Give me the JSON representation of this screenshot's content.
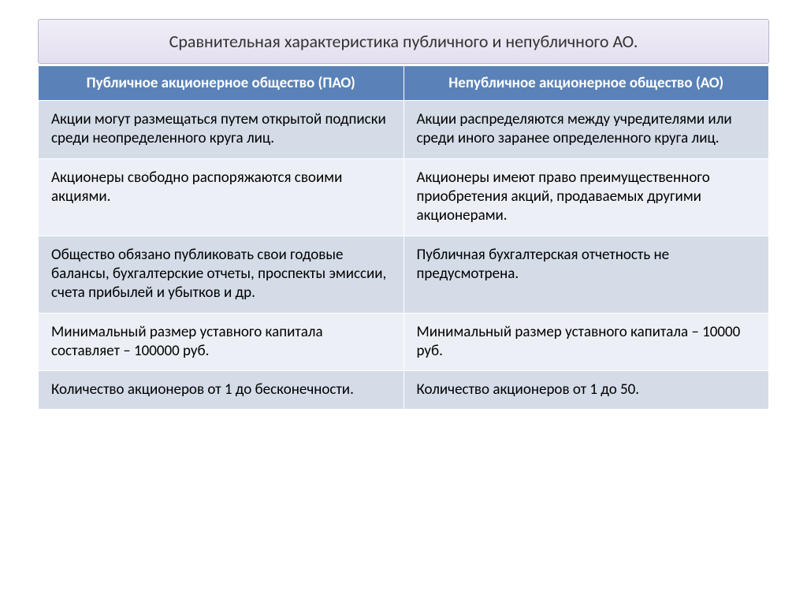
{
  "title": "Сравнительная характеристика публичного и непубличного АО.",
  "table": {
    "header_bg": "#5a82b8",
    "header_fg": "#ffffff",
    "row_odd_bg": "#d4dce8",
    "row_even_bg": "#ecf0f6",
    "title_bg_top": "#f0eef6",
    "title_bg_bottom": "#e4dff0",
    "font_size_header": 19,
    "font_size_body": 19,
    "columns": [
      "Публичное акционерное общество (ПАО)",
      "Непубличное акционерное общество (АО)"
    ],
    "rows": [
      [
        "Акции могут размещаться путем открытой подписки среди неопределенного круга лиц.",
        "Акции распределяются между учредителями или среди иного заранее определенного круга лиц."
      ],
      [
        "Акционеры свободно распоряжаются своими акциями.",
        "Акционеры имеют право преимущественного приобретения акций, продаваемых другими акционерами."
      ],
      [
        "Общество обязано публиковать свои годовые балансы, бухгалтерские отчеты, проспекты эмиссии, счета прибылей и убытков и др.",
        "Публичная бухгалтерская отчетность не предусмотрена."
      ],
      [
        "Минимальный размер уставного капитала составляет – 100000 руб.",
        "Минимальный размер уставного капитала – 10000 руб."
      ],
      [
        "Количество акционеров от 1 до бесконечности.",
        "Количество акционеров от 1 до 50."
      ]
    ]
  }
}
